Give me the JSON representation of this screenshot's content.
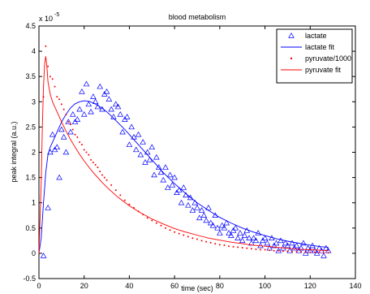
{
  "chart_data": {
    "type": "scatter",
    "title": "blood metabolism",
    "xlabel": "time (sec)",
    "ylabel": "peak integral (a.u.)",
    "exponent_label": "x 10",
    "exponent": "-5",
    "xlim": [
      0,
      140
    ],
    "ylim": [
      -0.5,
      4.5
    ],
    "xticks": [
      "0",
      "20",
      "40",
      "60",
      "80",
      "100",
      "120",
      "140"
    ],
    "yticks": [
      "-0.5",
      "0",
      "0.5",
      "1",
      "1.5",
      "2",
      "2.5",
      "3",
      "3.5",
      "4",
      "4.5"
    ],
    "legend_position": "top-right",
    "series": [
      {
        "name": "lactate",
        "style": "triangle-marker",
        "color": "#0000ff",
        "x": [
          2,
          4,
          5,
          6,
          7,
          8,
          9,
          10,
          11,
          12,
          13,
          14,
          15,
          16,
          17,
          18,
          19,
          20,
          21,
          22,
          23,
          24,
          25,
          26,
          27,
          28,
          29,
          30,
          31,
          32,
          33,
          34,
          35,
          36,
          37,
          38,
          39,
          40,
          41,
          42,
          43,
          44,
          45,
          46,
          47,
          48,
          49,
          50,
          51,
          52,
          53,
          54,
          55,
          56,
          57,
          58,
          59,
          60,
          61,
          62,
          63,
          64,
          65,
          66,
          67,
          68,
          69,
          70,
          71,
          72,
          73,
          74,
          75,
          76,
          77,
          78,
          79,
          80,
          81,
          82,
          83,
          84,
          85,
          86,
          87,
          88,
          89,
          90,
          91,
          92,
          93,
          94,
          95,
          96,
          97,
          98,
          99,
          100,
          101,
          102,
          103,
          104,
          105,
          106,
          107,
          108,
          109,
          110,
          111,
          112,
          113,
          114,
          115,
          116,
          117,
          118,
          119,
          120,
          121,
          122,
          123,
          124,
          125,
          126,
          127,
          128
        ],
        "y": [
          -0.05,
          0.9,
          2.0,
          2.35,
          2.05,
          2.1,
          1.5,
          2.45,
          2.3,
          2.0,
          2.6,
          2.4,
          2.75,
          2.6,
          2.65,
          2.85,
          3.2,
          2.75,
          3.35,
          2.95,
          2.8,
          3.1,
          3.0,
          2.9,
          3.3,
          2.85,
          3.15,
          3.2,
          3.05,
          2.85,
          2.7,
          2.95,
          2.9,
          2.75,
          2.4,
          2.65,
          2.7,
          2.15,
          2.5,
          2.3,
          2.05,
          2.35,
          1.95,
          2.2,
          1.8,
          2.0,
          1.85,
          2.1,
          1.55,
          1.9,
          1.7,
          1.6,
          1.45,
          1.7,
          1.3,
          1.55,
          1.35,
          1.5,
          1.2,
          1.25,
          1.0,
          1.3,
          1.15,
          0.95,
          1.1,
          0.85,
          1.0,
          0.9,
          0.7,
          0.85,
          0.75,
          0.65,
          0.9,
          0.6,
          0.55,
          0.75,
          0.5,
          0.4,
          0.55,
          0.5,
          0.6,
          0.4,
          0.35,
          0.45,
          0.5,
          0.3,
          0.4,
          0.25,
          0.35,
          0.45,
          0.3,
          0.2,
          0.3,
          0.25,
          0.4,
          0.15,
          0.25,
          0.3,
          0.2,
          0.1,
          0.3,
          0.15,
          0.2,
          0.05,
          0.25,
          0.1,
          0.2,
          0.15,
          0.05,
          0.2,
          0.1,
          0.15,
          0.05,
          0.1,
          0.2,
          0.0,
          0.1,
          0.05,
          0.15,
          0.05,
          0.0,
          0.1,
          0.05,
          -0.05,
          0.1,
          0.05
        ]
      },
      {
        "name": "lactate fit",
        "style": "line",
        "color": "#0000ff",
        "x": [
          0,
          1,
          2,
          3,
          4,
          5,
          6,
          8,
          10,
          12,
          14,
          16,
          18,
          20,
          22,
          24,
          26,
          28,
          30,
          32,
          34,
          36,
          38,
          40,
          45,
          50,
          55,
          60,
          65,
          70,
          75,
          80,
          85,
          90,
          95,
          100,
          105,
          110,
          115,
          120,
          125,
          128
        ],
        "y": [
          0.0,
          0.3,
          1.0,
          1.6,
          1.95,
          2.1,
          2.2,
          2.4,
          2.6,
          2.75,
          2.88,
          2.96,
          3.0,
          3.02,
          3.01,
          2.98,
          2.93,
          2.87,
          2.8,
          2.72,
          2.63,
          2.54,
          2.45,
          2.35,
          2.1,
          1.85,
          1.6,
          1.38,
          1.18,
          1.0,
          0.85,
          0.71,
          0.6,
          0.5,
          0.42,
          0.35,
          0.29,
          0.24,
          0.2,
          0.16,
          0.13,
          0.12
        ]
      },
      {
        "name": "pyruvate/1000",
        "style": "dot-marker",
        "color": "#ff0000",
        "x": [
          1,
          2,
          3,
          4,
          5,
          6,
          7,
          8,
          9,
          10,
          11,
          12,
          13,
          14,
          15,
          16,
          17,
          18,
          19,
          20,
          21,
          22,
          23,
          24,
          25,
          26,
          27,
          28,
          29,
          30,
          32,
          34,
          36,
          38,
          40,
          42,
          44,
          46,
          48,
          50,
          52,
          54,
          56,
          58,
          60,
          62,
          64,
          66,
          68,
          70,
          72,
          74,
          76,
          78,
          80,
          82,
          84,
          86,
          88,
          90,
          92,
          94,
          96,
          98,
          100,
          102,
          104,
          106,
          108,
          110,
          112,
          114,
          116,
          118,
          120,
          122,
          124,
          126,
          128
        ],
        "y": [
          1.5,
          3.1,
          4.1,
          3.7,
          3.5,
          3.45,
          3.3,
          3.1,
          3.05,
          2.95,
          2.85,
          2.75,
          2.6,
          2.55,
          2.45,
          2.35,
          2.3,
          2.2,
          2.15,
          2.05,
          2.0,
          1.95,
          1.85,
          1.8,
          1.75,
          1.7,
          1.62,
          1.55,
          1.5,
          1.45,
          1.35,
          1.25,
          1.15,
          1.05,
          0.97,
          0.9,
          0.83,
          0.77,
          0.7,
          0.65,
          0.6,
          0.55,
          0.5,
          0.46,
          0.42,
          0.39,
          0.36,
          0.33,
          0.3,
          0.28,
          0.25,
          0.23,
          0.21,
          0.19,
          0.17,
          0.16,
          0.14,
          0.13,
          0.12,
          0.11,
          0.1,
          0.09,
          0.08,
          0.07,
          0.07,
          0.06,
          0.05,
          0.05,
          0.04,
          0.04,
          0.03,
          0.03,
          0.03,
          0.02,
          0.02,
          0.02,
          0.02,
          0.01,
          0.01
        ]
      },
      {
        "name": "pyruvate fit",
        "style": "line",
        "color": "#ff0000",
        "x": [
          0,
          1,
          1.5,
          2,
          2.5,
          3,
          3.5,
          4,
          5,
          6,
          8,
          10,
          12,
          14,
          16,
          18,
          20,
          22,
          24,
          26,
          28,
          30,
          35,
          40,
          45,
          50,
          55,
          60,
          65,
          70,
          75,
          80,
          85,
          90,
          95,
          100,
          105,
          110,
          115,
          120,
          125,
          128
        ],
        "y": [
          0.0,
          1.4,
          2.5,
          3.3,
          3.75,
          3.9,
          3.7,
          3.4,
          3.15,
          3.0,
          2.8,
          2.6,
          2.42,
          2.25,
          2.1,
          1.96,
          1.83,
          1.71,
          1.6,
          1.5,
          1.4,
          1.31,
          1.11,
          0.94,
          0.8,
          0.68,
          0.58,
          0.49,
          0.42,
          0.36,
          0.3,
          0.26,
          0.22,
          0.19,
          0.16,
          0.14,
          0.12,
          0.1,
          0.08,
          0.07,
          0.06,
          0.05
        ]
      }
    ]
  }
}
